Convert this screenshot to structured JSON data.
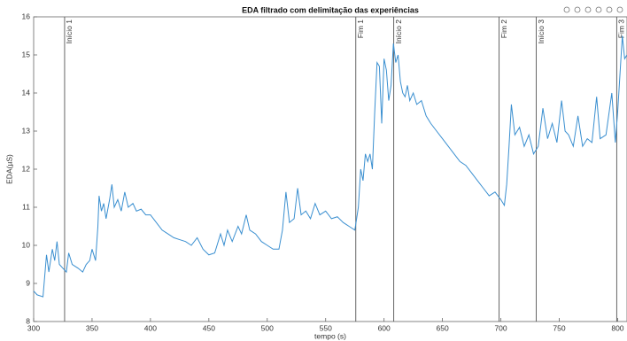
{
  "chart_data": {
    "type": "line",
    "title": "EDA filtrado com delimitação das experiências",
    "xlabel": "tempo (s)",
    "ylabel": "EDA(µS)",
    "color": "#3a8fd0",
    "x": [
      300,
      303,
      308,
      311,
      313,
      316,
      318,
      320,
      322,
      325,
      328,
      330,
      333,
      338,
      342,
      345,
      348,
      350,
      353,
      355,
      356,
      358,
      360,
      362,
      365,
      367,
      369,
      372,
      375,
      378,
      381,
      385,
      388,
      392,
      396,
      400,
      405,
      410,
      415,
      420,
      425,
      430,
      435,
      440,
      445,
      450,
      455,
      460,
      463,
      466,
      470,
      475,
      478,
      482,
      485,
      490,
      495,
      500,
      505,
      510,
      513,
      516,
      519,
      523,
      526,
      529,
      533,
      537,
      541,
      545,
      550,
      555,
      560,
      565,
      570,
      575,
      578,
      580,
      582,
      584,
      586,
      588,
      590,
      592,
      594,
      596,
      598,
      600,
      602,
      604,
      606,
      608,
      610,
      612,
      614,
      616,
      618,
      620,
      622,
      625,
      628,
      632,
      636,
      640,
      645,
      650,
      655,
      660,
      665,
      670,
      675,
      680,
      685,
      690,
      695,
      700,
      703,
      705,
      707,
      709,
      712,
      716,
      720,
      724,
      728,
      732,
      736,
      740,
      744,
      748,
      752,
      755,
      758,
      762,
      766,
      770,
      774,
      778,
      782,
      785,
      790,
      795,
      798,
      800,
      802,
      804,
      806,
      808
    ],
    "values": [
      8.8,
      8.7,
      8.65,
      9.75,
      9.3,
      9.9,
      9.6,
      10.1,
      9.5,
      9.4,
      9.3,
      9.8,
      9.5,
      9.4,
      9.3,
      9.5,
      9.6,
      9.9,
      9.6,
      10.5,
      11.3,
      10.9,
      11.1,
      10.7,
      11.2,
      11.6,
      11.0,
      11.2,
      10.9,
      11.4,
      11.0,
      11.1,
      10.9,
      10.95,
      10.8,
      10.8,
      10.6,
      10.4,
      10.3,
      10.2,
      10.15,
      10.1,
      10.0,
      10.2,
      9.9,
      9.75,
      9.8,
      10.3,
      10.0,
      10.4,
      10.1,
      10.5,
      10.3,
      10.8,
      10.4,
      10.3,
      10.1,
      10.0,
      9.9,
      9.9,
      10.4,
      11.4,
      10.6,
      10.7,
      11.5,
      10.8,
      10.9,
      10.7,
      11.1,
      10.8,
      10.9,
      10.7,
      10.75,
      10.6,
      10.5,
      10.4,
      11.0,
      12.0,
      11.7,
      12.4,
      12.2,
      12.4,
      12.0,
      13.5,
      14.8,
      14.7,
      13.2,
      14.9,
      14.6,
      13.8,
      14.2,
      15.3,
      14.8,
      15.0,
      14.3,
      14.0,
      13.9,
      14.2,
      13.8,
      14.0,
      13.7,
      13.8,
      13.4,
      13.2,
      13.0,
      12.8,
      12.6,
      12.4,
      12.2,
      12.1,
      11.9,
      11.7,
      11.5,
      11.3,
      11.4,
      11.2,
      11.05,
      11.6,
      12.6,
      13.7,
      12.9,
      13.1,
      12.6,
      12.9,
      12.4,
      12.6,
      13.6,
      12.8,
      13.2,
      12.7,
      13.8,
      13.0,
      12.9,
      12.6,
      13.4,
      12.6,
      12.8,
      12.7,
      13.9,
      12.8,
      12.9,
      14.0,
      12.7,
      13.5,
      14.5,
      15.5,
      14.9,
      15.0
    ],
    "xlim": [
      300,
      808
    ],
    "xticks": [
      300,
      350,
      400,
      450,
      500,
      550,
      600,
      650,
      700,
      750,
      800
    ],
    "ylim": [
      8,
      16
    ],
    "yticks": [
      8,
      9,
      10,
      11,
      12,
      13,
      14,
      15,
      16
    ],
    "annotations": [
      {
        "x": 326.5,
        "label": "Início 1"
      },
      {
        "x": 575.8,
        "label": "Fim 1"
      },
      {
        "x": 608.3,
        "label": "Início 2"
      },
      {
        "x": 698.5,
        "label": "Fim 2"
      },
      {
        "x": 730.3,
        "label": "Início 3"
      },
      {
        "x": 799.2,
        "label": "Fim 3"
      }
    ]
  }
}
